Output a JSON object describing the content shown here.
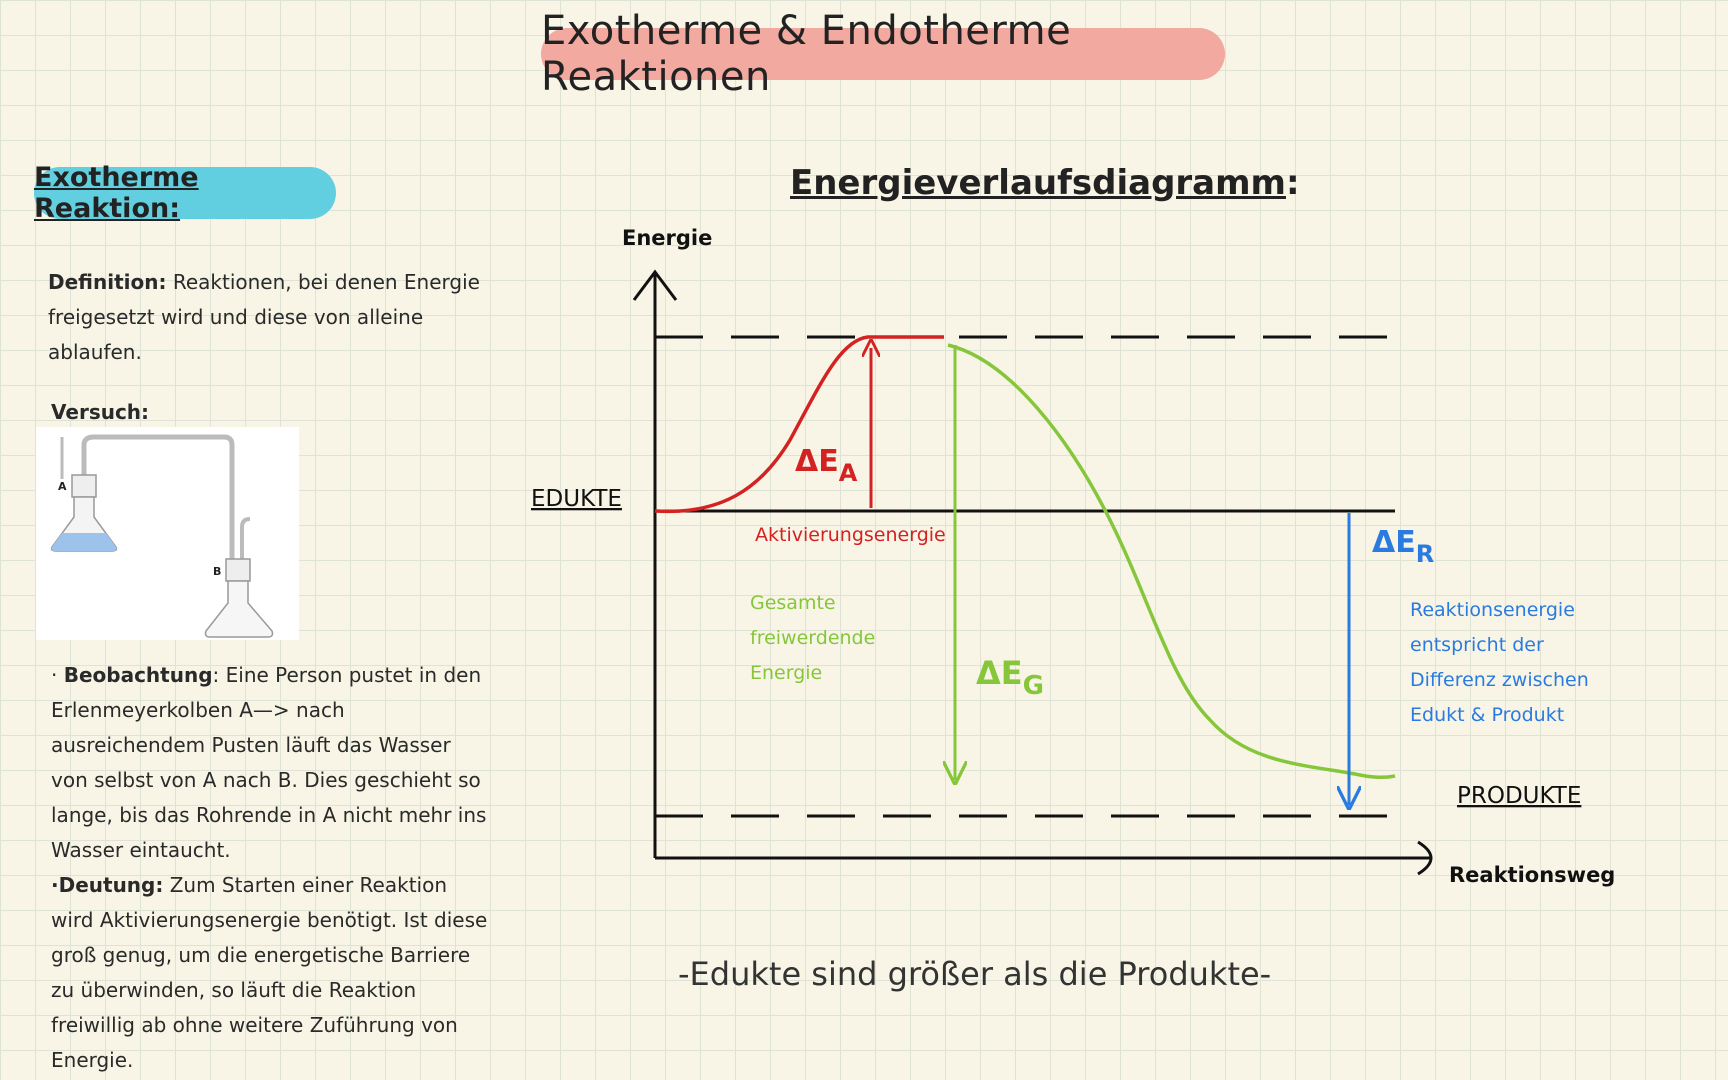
{
  "title": "Exotherme & Endotherme Reaktionen",
  "section_title": "Exotherme Reaktion:",
  "definition": {
    "label": "Definition:",
    "text": " Reaktionen, bei denen Energie freigesetzt wird und diese von alleine ablaufen."
  },
  "versuch_label": "Versuch:",
  "apparatus": {
    "flask_a_label": "A",
    "flask_b_label": "B"
  },
  "beobachtung": {
    "bullet": "· ",
    "label": "Beobachtung",
    "text": ": Eine Person pustet in den Erlenmeyerkolben A—> nach ausreichendem Pusten läuft das Wasser von selbst von A nach B. Dies geschieht so lange, bis das Rohrende in A nicht mehr ins Wasser eintaucht."
  },
  "deutung": {
    "label": "·Deutung:",
    "text": " Zum Starten einer Reaktion wird Aktivierungsenergie benötigt. Ist diese groß genug, um die energetische Barriere zu überwinden, so läuft die Reaktion freiwillig ab ohne weitere Zuführung von Energie."
  },
  "diagram": {
    "heading": "Energieverlaufsdiagramm",
    "heading_suffix": ":",
    "y_axis_label": "Energie",
    "x_axis_label": "Reaktionsweg",
    "edukte_label": "EDUKTE",
    "produkte_label": "PRODUKTE",
    "delta_ea": "ΔE",
    "delta_ea_sub": "A",
    "activation_label": "Aktivierungsenergie",
    "delta_eg": "ΔE",
    "delta_eg_sub": "G",
    "gesamt_lines": [
      "Gesamte",
      "freiwerdende",
      "Energie"
    ],
    "delta_er": "ΔE",
    "delta_er_sub": "R",
    "reaktion_lines": [
      "Reaktionsenergie",
      "entspricht der",
      "Differenz zwischen",
      "Edukt & Produkt"
    ],
    "colors": {
      "activation": "#d42222",
      "total": "#86c63a",
      "reaction": "#2a7be0",
      "axes": "#111111"
    }
  },
  "conclusion": "-Edukte sind größer als die Produkte-"
}
